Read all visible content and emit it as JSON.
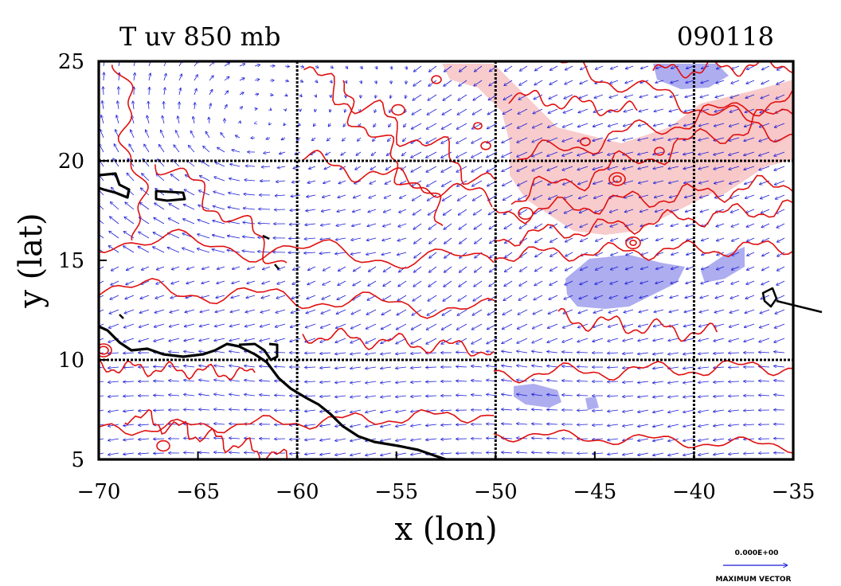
{
  "title_left": "T uv 850 mb",
  "title_right": "090118",
  "x_axis": {
    "label": "x (lon)",
    "ticks": [
      -70,
      -65,
      -60,
      -55,
      -50,
      -45,
      -40,
      -35
    ],
    "tick_labels": [
      "−70",
      "−65",
      "−60",
      "−55",
      "−50",
      "−45",
      "−40",
      "−35"
    ],
    "range": [
      -70,
      -35
    ]
  },
  "y_axis": {
    "label": "y (lat)",
    "ticks": [
      5,
      10,
      15,
      20,
      25
    ],
    "tick_labels": [
      "5",
      "10",
      "15",
      "20",
      "25"
    ],
    "range": [
      5,
      25
    ]
  },
  "grid_lon": [
    -60,
    -50,
    -40
  ],
  "grid_lat": [
    10,
    20
  ],
  "legend": {
    "value": "0.000E+00",
    "caption": "MAXIMUM VECTOR"
  },
  "colors": {
    "contour": "#e01010",
    "vector": "#1a1ad6",
    "coastline": "#000000",
    "warm_fill": "#f7c6c6",
    "cool_fill": "#a9a9ef"
  }
}
